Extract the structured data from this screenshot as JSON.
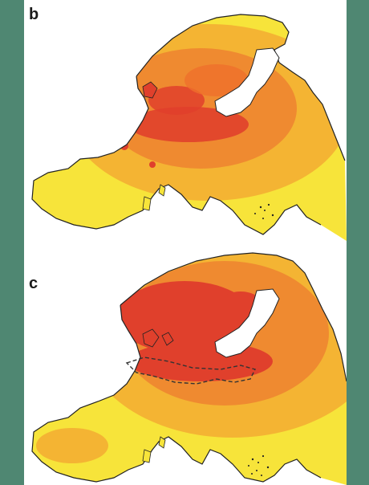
{
  "panels": [
    {
      "label": "b"
    },
    {
      "label": "c"
    }
  ],
  "colors": {
    "outer_background": "#4f8772",
    "panel_background": "#ffffff",
    "low": "#f7e43a",
    "mid": "#f4b433",
    "high": "#ef8a30",
    "peak": "#e0402c",
    "coastline": "#222222"
  }
}
